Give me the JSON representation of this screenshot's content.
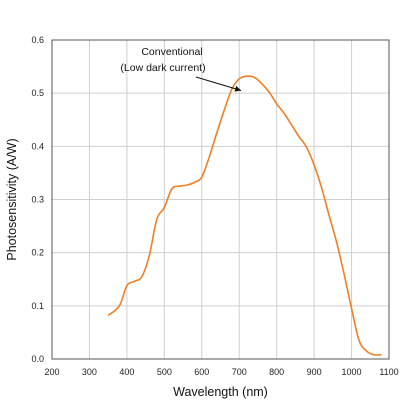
{
  "chart_data": {
    "type": "line",
    "title": "",
    "xlabel": "Wavelength (nm)",
    "ylabel": "Photosensitivity (A/W)",
    "xlim": [
      200,
      1100
    ],
    "ylim": [
      0,
      0.6
    ],
    "xticks": [
      200,
      300,
      400,
      500,
      600,
      700,
      800,
      900,
      1000,
      1100
    ],
    "yticks": [
      "0.0",
      "0.1",
      "0.2",
      "0.3",
      "0.4",
      "0.5",
      "0.6"
    ],
    "grid": true,
    "line_color": "#f07f24",
    "series": [
      {
        "x": [
          350,
          380,
          400,
          420,
          440,
          460,
          480,
          500,
          520,
          540,
          560,
          580,
          600,
          620,
          640,
          660,
          680,
          700,
          720,
          740,
          760,
          780,
          800,
          820,
          840,
          860,
          880,
          900,
          920,
          940,
          960,
          980,
          1000,
          1020,
          1040,
          1060,
          1080
        ],
        "values": [
          0.082,
          0.1,
          0.138,
          0.146,
          0.155,
          0.195,
          0.263,
          0.285,
          0.32,
          0.325,
          0.327,
          0.332,
          0.342,
          0.38,
          0.425,
          0.468,
          0.507,
          0.527,
          0.532,
          0.53,
          0.518,
          0.502,
          0.48,
          0.462,
          0.44,
          0.418,
          0.398,
          0.365,
          0.322,
          0.27,
          0.22,
          0.16,
          0.095,
          0.035,
          0.015,
          0.008,
          0.008
        ]
      }
    ],
    "annotations": [
      {
        "lines": [
          "Conventional",
          "(Low dark current)"
        ],
        "arrow_to": [
          705,
          0.505
        ]
      }
    ]
  }
}
